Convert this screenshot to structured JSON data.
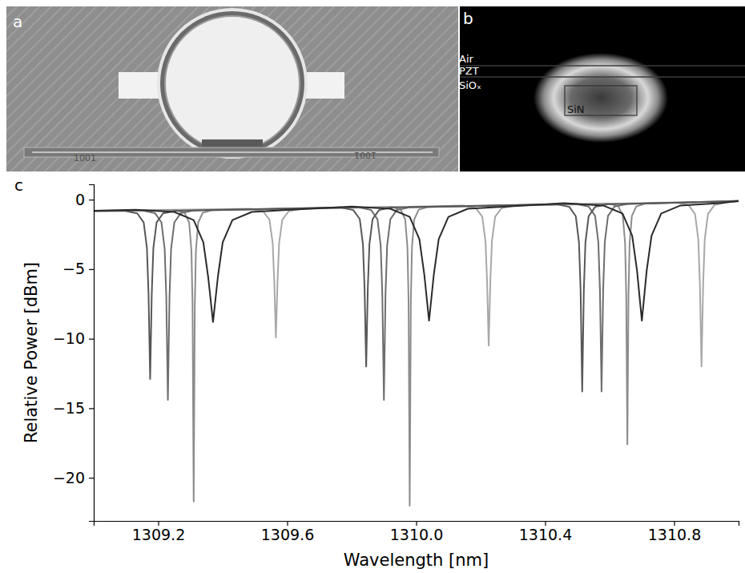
{
  "panel_a": {
    "label": "a",
    "markings": [
      "1001",
      "1001"
    ]
  },
  "panel_b": {
    "label": "b",
    "layers": [
      "Air",
      "PZT",
      "SiOₓ"
    ],
    "core": "SiN"
  },
  "panel_c": {
    "label": "c"
  },
  "chart_data": {
    "type": "line",
    "x_label": "Wavelength [nm]",
    "y_label": "Relative Power [dBm]",
    "xlim": [
      1309.0,
      1311.0
    ],
    "ylim": [
      -23.1,
      1.1
    ],
    "xticks": [
      1309.2,
      1309.6,
      {
        "value": 1310.0,
        "label": "1310.0"
      },
      1310.4,
      1310.8
    ],
    "yticks": [
      0,
      {
        "value": -5,
        "label": "−5"
      },
      {
        "value": -10,
        "label": "−10"
      },
      {
        "value": -15,
        "label": "−15"
      },
      {
        "value": -20,
        "label": "−20"
      }
    ],
    "grid": false,
    "series": [
      {
        "color": "#a8a8a8",
        "x": [
          1309.0,
          1309.485,
          1309.525,
          1309.545,
          1309.555,
          1309.56,
          1309.565,
          1309.57,
          1309.575,
          1309.585,
          1309.605,
          1309.645,
          1310.145,
          1310.185,
          1310.205,
          1310.215,
          1310.22,
          1310.225,
          1310.23,
          1310.235,
          1310.245,
          1310.265,
          1310.305,
          1310.805,
          1310.845,
          1310.865,
          1310.875,
          1310.88,
          1310.885,
          1310.89,
          1310.895,
          1310.905,
          1310.925,
          1310.965,
          1311.0
        ],
        "values": [
          -0.8,
          -0.66,
          -0.83,
          -1.44,
          -3.13,
          -5.92,
          -9.9,
          -5.92,
          -3.13,
          -1.44,
          -0.83,
          -0.66,
          -0.43,
          -0.61,
          -1.23,
          -2.97,
          -5.93,
          -10.5,
          -5.93,
          -2.97,
          -1.23,
          -0.61,
          -0.43,
          -0.2,
          -0.39,
          -1.04,
          -2.87,
          -6.11,
          -12.0,
          -6.11,
          -2.87,
          -1.04,
          -0.39,
          -0.2,
          -0.1
        ]
      },
      {
        "color": "#8c8c8c",
        "x": [
          1309.0,
          1309.254,
          1309.282,
          1309.296,
          1309.303,
          1309.3065,
          1309.31,
          1309.3135,
          1309.317,
          1309.324,
          1309.338,
          1309.366,
          1309.924,
          1309.952,
          1309.966,
          1309.973,
          1309.9765,
          1309.98,
          1309.9835,
          1309.987,
          1309.994,
          1310.008,
          1310.036,
          1310.599,
          1310.627,
          1310.641,
          1310.648,
          1310.6515,
          1310.655,
          1310.6585,
          1310.662,
          1310.669,
          1310.683,
          1310.711,
          1311.0
        ],
        "values": [
          -0.82,
          -0.76,
          -0.95,
          -1.65,
          -3.67,
          -7.55,
          -21.7,
          -7.55,
          -3.67,
          -1.65,
          -0.95,
          -0.76,
          -0.53,
          -0.72,
          -1.42,
          -3.44,
          -7.32,
          -22.0,
          -7.32,
          -3.44,
          -1.42,
          -0.72,
          -0.53,
          -0.29,
          -0.48,
          -1.17,
          -3.15,
          -6.89,
          -17.6,
          -6.89,
          -3.15,
          -1.17,
          -0.48,
          -0.29,
          -0.08
        ]
      },
      {
        "color": "#6e6e6e",
        "x": [
          1309.0,
          1309.15,
          1309.19,
          1309.21,
          1309.22,
          1309.225,
          1309.23,
          1309.235,
          1309.24,
          1309.25,
          1309.27,
          1309.31,
          1309.82,
          1309.86,
          1309.88,
          1309.89,
          1309.895,
          1309.9,
          1309.905,
          1309.91,
          1309.92,
          1309.94,
          1309.98,
          1310.495,
          1310.535,
          1310.555,
          1310.565,
          1310.57,
          1310.575,
          1310.58,
          1310.585,
          1310.595,
          1310.615,
          1310.655,
          1311.0
        ],
        "values": [
          -0.82,
          -0.78,
          -0.97,
          -1.64,
          -3.53,
          -6.97,
          -14.4,
          -6.97,
          -3.53,
          -1.64,
          -0.97,
          -0.78,
          -0.55,
          -0.74,
          -1.41,
          -3.3,
          -6.74,
          -14.4,
          -6.74,
          -3.3,
          -1.41,
          -0.74,
          -0.55,
          -0.31,
          -0.5,
          -1.17,
          -3.06,
          -6.5,
          -13.8,
          -6.5,
          -3.06,
          -1.17,
          -0.5,
          -0.31,
          -0.1
        ]
      },
      {
        "color": "#575757",
        "x": [
          1309.0,
          1309.095,
          1309.135,
          1309.155,
          1309.165,
          1309.17,
          1309.175,
          1309.18,
          1309.185,
          1309.195,
          1309.215,
          1309.255,
          1309.765,
          1309.805,
          1309.825,
          1309.835,
          1309.84,
          1309.845,
          1309.85,
          1309.855,
          1309.865,
          1309.885,
          1309.925,
          1310.435,
          1310.475,
          1310.495,
          1310.505,
          1310.51,
          1310.515,
          1310.52,
          1310.525,
          1310.535,
          1310.555,
          1310.595,
          1311.0
        ],
        "values": [
          -0.82,
          -0.8,
          -0.99,
          -1.64,
          -3.48,
          -6.76,
          -12.9,
          -6.76,
          -3.48,
          -1.64,
          -0.99,
          -0.8,
          -0.56,
          -0.75,
          -1.39,
          -3.21,
          -6.39,
          -12.0,
          -6.39,
          -3.21,
          -1.39,
          -0.75,
          -0.56,
          -0.33,
          -0.52,
          -1.19,
          -3.08,
          -6.52,
          -13.8,
          -6.52,
          -3.08,
          -1.19,
          -0.52,
          -0.33,
          -0.12
        ]
      },
      {
        "color": "#2a2a2a",
        "x": [
          1309.0,
          1309.13,
          1309.25,
          1309.31,
          1309.34,
          1309.355,
          1309.37,
          1309.385,
          1309.4,
          1309.43,
          1309.49,
          1309.61,
          1309.8,
          1309.92,
          1309.98,
          1310.01,
          1310.025,
          1310.04,
          1310.055,
          1310.07,
          1310.1,
          1310.16,
          1310.28,
          1310.46,
          1310.58,
          1310.64,
          1310.67,
          1310.685,
          1310.7,
          1310.715,
          1310.73,
          1310.76,
          1310.82,
          1310.94,
          1311.0
        ],
        "values": [
          -0.8,
          -0.73,
          -0.89,
          -1.47,
          -3.07,
          -5.57,
          -8.8,
          -5.57,
          -3.07,
          -1.47,
          -0.89,
          -0.73,
          -0.5,
          -0.66,
          -1.24,
          -2.84,
          -5.34,
          -8.7,
          -5.34,
          -2.84,
          -1.24,
          -0.66,
          -0.5,
          -0.26,
          -0.42,
          -1.0,
          -2.6,
          -5.1,
          -8.7,
          -5.1,
          -2.6,
          -1.0,
          -0.42,
          -0.26,
          -0.1
        ]
      }
    ]
  }
}
